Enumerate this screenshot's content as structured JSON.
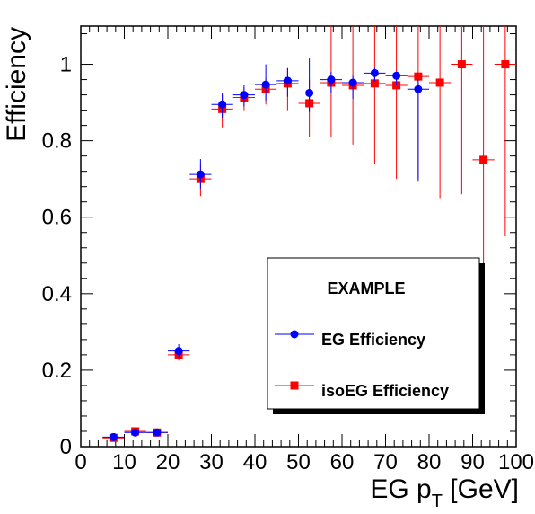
{
  "chart_data": {
    "type": "scatter",
    "xlabel": "EG p",
    "xlabel_sub": "T",
    "xlabel_unit": "[GeV]",
    "ylabel": "Efficiency",
    "xlim": [
      0,
      100
    ],
    "ylim": [
      0,
      1.1
    ],
    "x_ticks": [
      0,
      10,
      20,
      30,
      40,
      50,
      60,
      70,
      80,
      90,
      100
    ],
    "y_ticks": [
      0,
      0.2,
      0.4,
      0.6,
      0.8,
      1
    ],
    "grid": false,
    "legend_position": "lower-right",
    "legend_title": "EXAMPLE",
    "series": [
      {
        "name": "EG Efficiency",
        "color": "#0000ff",
        "marker": "circle",
        "points": [
          {
            "x": 7.5,
            "y": 0.025,
            "xerr": 2.5,
            "ylo": 0.018,
            "yhi": 0.032
          },
          {
            "x": 12.5,
            "y": 0.037,
            "xerr": 2.5,
            "ylo": 0.03,
            "yhi": 0.045
          },
          {
            "x": 17.5,
            "y": 0.037,
            "xerr": 2.5,
            "ylo": 0.03,
            "yhi": 0.045
          },
          {
            "x": 22.5,
            "y": 0.25,
            "xerr": 2.5,
            "ylo": 0.232,
            "yhi": 0.268
          },
          {
            "x": 27.5,
            "y": 0.712,
            "xerr": 2.5,
            "ylo": 0.675,
            "yhi": 0.752
          },
          {
            "x": 32.5,
            "y": 0.895,
            "xerr": 2.5,
            "ylo": 0.86,
            "yhi": 0.925
          },
          {
            "x": 37.5,
            "y": 0.92,
            "xerr": 2.5,
            "ylo": 0.89,
            "yhi": 0.945
          },
          {
            "x": 42.5,
            "y": 0.947,
            "xerr": 2.5,
            "ylo": 0.905,
            "yhi": 1.0
          },
          {
            "x": 47.5,
            "y": 0.957,
            "xerr": 2.5,
            "ylo": 0.915,
            "yhi": 0.99
          },
          {
            "x": 52.5,
            "y": 0.925,
            "xerr": 2.5,
            "ylo": 0.875,
            "yhi": 1.015
          },
          {
            "x": 57.5,
            "y": 0.96,
            "xerr": 2.5,
            "ylo": 0.925,
            "yhi": 0.98
          },
          {
            "x": 62.5,
            "y": 0.952,
            "xerr": 2.5,
            "ylo": 0.91,
            "yhi": 0.97
          },
          {
            "x": 67.5,
            "y": 0.977,
            "xerr": 2.5,
            "ylo": 0.955,
            "yhi": 0.99
          },
          {
            "x": 72.5,
            "y": 0.97,
            "xerr": 2.5,
            "ylo": 0.945,
            "yhi": 0.98
          },
          {
            "x": 77.5,
            "y": 0.935,
            "xerr": 2.5,
            "ylo": 0.695,
            "yhi": 0.96
          }
        ]
      },
      {
        "name": "isoEG Efficiency",
        "color": "#ff0000",
        "marker": "square",
        "points": [
          {
            "x": 7.5,
            "y": 0.023,
            "xerr": 2.5,
            "ylo": 0.017,
            "yhi": 0.03
          },
          {
            "x": 12.5,
            "y": 0.04,
            "xerr": 2.5,
            "ylo": 0.033,
            "yhi": 0.047
          },
          {
            "x": 17.5,
            "y": 0.037,
            "xerr": 2.5,
            "ylo": 0.03,
            "yhi": 0.044
          },
          {
            "x": 22.5,
            "y": 0.24,
            "xerr": 2.5,
            "ylo": 0.225,
            "yhi": 0.255
          },
          {
            "x": 27.5,
            "y": 0.7,
            "xerr": 2.5,
            "ylo": 0.655,
            "yhi": 0.74
          },
          {
            "x": 32.5,
            "y": 0.883,
            "xerr": 2.5,
            "ylo": 0.835,
            "yhi": 0.92
          },
          {
            "x": 37.5,
            "y": 0.913,
            "xerr": 2.5,
            "ylo": 0.88,
            "yhi": 0.94
          },
          {
            "x": 42.5,
            "y": 0.935,
            "xerr": 2.5,
            "ylo": 0.895,
            "yhi": 0.965
          },
          {
            "x": 47.5,
            "y": 0.95,
            "xerr": 2.5,
            "ylo": 0.88,
            "yhi": 0.99
          },
          {
            "x": 52.5,
            "y": 0.898,
            "xerr": 2.5,
            "ylo": 0.81,
            "yhi": 0.96
          },
          {
            "x": 57.5,
            "y": 0.952,
            "xerr": 2.5,
            "ylo": 0.81,
            "yhi": 1.1
          },
          {
            "x": 62.5,
            "y": 0.945,
            "xerr": 2.5,
            "ylo": 0.79,
            "yhi": 1.1
          },
          {
            "x": 67.5,
            "y": 0.95,
            "xerr": 2.5,
            "ylo": 0.74,
            "yhi": 1.1
          },
          {
            "x": 72.5,
            "y": 0.945,
            "xerr": 2.5,
            "ylo": 0.7,
            "yhi": 1.1
          },
          {
            "x": 77.5,
            "y": 0.968,
            "xerr": 2.5,
            "ylo": 0.7,
            "yhi": 1.1
          },
          {
            "x": 82.5,
            "y": 0.952,
            "xerr": 2.5,
            "ylo": 0.65,
            "yhi": 1.1
          },
          {
            "x": 87.5,
            "y": 1.0,
            "xerr": 2.5,
            "ylo": 0.66,
            "yhi": 1.1
          },
          {
            "x": 92.5,
            "y": 0.75,
            "xerr": 2.5,
            "ylo": 0.175,
            "yhi": 1.1
          },
          {
            "x": 97.5,
            "y": 1.0,
            "xerr": 2.5,
            "ylo": 0.55,
            "yhi": 1.1
          }
        ]
      }
    ]
  }
}
